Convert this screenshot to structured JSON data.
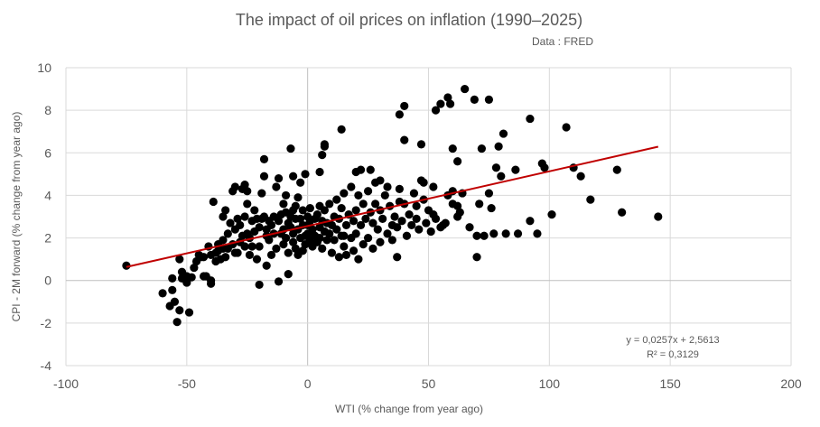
{
  "chart_data": {
    "type": "scatter",
    "title": "The impact of oil prices on inflation (1990–2025)",
    "subtitle": "Data : FRED",
    "xlabel": "WTI (% change from year ago)",
    "ylabel": "CPI - 2M forward (% change from year ago)",
    "xlim": [
      -100,
      200
    ],
    "ylim": [
      -4,
      10
    ],
    "xticks": [
      -100,
      -50,
      0,
      50,
      100,
      150,
      200
    ],
    "yticks": [
      -4,
      -2,
      0,
      2,
      4,
      6,
      8,
      10
    ],
    "grid": true,
    "legend": "none",
    "marker_color": "#000000",
    "trendline": {
      "slope": 0.0257,
      "intercept": 2.5613,
      "x_range": [
        -75,
        145
      ],
      "color": "#c00000",
      "equation_label": "y = 0,0257x + 2,5613",
      "r2_label": "R² = 0,3129"
    },
    "points": [
      [
        -75,
        0.7
      ],
      [
        -60,
        -0.6
      ],
      [
        -57,
        -1.2
      ],
      [
        -56,
        -0.45
      ],
      [
        -56,
        0.1
      ],
      [
        -55,
        -1.0
      ],
      [
        -54,
        -1.95
      ],
      [
        -53,
        1.0
      ],
      [
        -53,
        -1.4
      ],
      [
        -52,
        0.4
      ],
      [
        -52,
        0.1
      ],
      [
        -50,
        0.2
      ],
      [
        -50,
        -0.1
      ],
      [
        -49,
        -1.5
      ],
      [
        -48,
        0.15
      ],
      [
        -47,
        0.6
      ],
      [
        -46,
        0.9
      ],
      [
        -45,
        1.2
      ],
      [
        -44,
        1.1
      ],
      [
        -43,
        0.2
      ],
      [
        -42,
        0.2
      ],
      [
        -40,
        0
      ],
      [
        -40,
        -0.15
      ],
      [
        -40,
        1.2
      ],
      [
        -39,
        3.7
      ],
      [
        -38,
        0.9
      ],
      [
        -37,
        1.7
      ],
      [
        -36,
        1.0
      ],
      [
        -35,
        3.0
      ],
      [
        -35,
        1.9
      ],
      [
        -34,
        3.3
      ],
      [
        -33,
        1.5
      ],
      [
        -32,
        2.7
      ],
      [
        -31,
        4.2
      ],
      [
        -30,
        4.4
      ],
      [
        -30,
        1.3
      ],
      [
        -29,
        2.9
      ],
      [
        -28,
        1.8
      ],
      [
        -27,
        4.3
      ],
      [
        -26,
        4.5
      ],
      [
        -25,
        4.2
      ],
      [
        -25,
        3.6
      ],
      [
        -25,
        2.2
      ],
      [
        -24,
        1.2
      ],
      [
        -23,
        2.8
      ],
      [
        -22,
        3.3
      ],
      [
        -21,
        1.0
      ],
      [
        -20,
        1.6
      ],
      [
        -20,
        -0.2
      ],
      [
        -19,
        4.1
      ],
      [
        -18,
        5.7
      ],
      [
        -18,
        4.9
      ],
      [
        -17,
        2.1
      ],
      [
        -17,
        0.7
      ],
      [
        -16,
        2.8
      ],
      [
        -15,
        1.2
      ],
      [
        -14,
        3.0
      ],
      [
        -13,
        4.4
      ],
      [
        -12,
        4.8
      ],
      [
        -12,
        -0.05
      ],
      [
        -11,
        2.2
      ],
      [
        -10,
        3.6
      ],
      [
        -10,
        1.7
      ],
      [
        -9,
        4.0
      ],
      [
        -8,
        0.3
      ],
      [
        -7,
        6.2
      ],
      [
        -7,
        2.5
      ],
      [
        -6,
        4.9
      ],
      [
        -6,
        3.3
      ],
      [
        -5,
        1.5
      ],
      [
        -4,
        3.9
      ],
      [
        -3,
        2.0
      ],
      [
        -3,
        4.6
      ],
      [
        -2,
        1.4
      ],
      [
        -1,
        5.0
      ],
      [
        0,
        2.6
      ],
      [
        -20,
        2.5
      ],
      [
        -19,
        2.9
      ],
      [
        -18,
        3.0
      ],
      [
        -17,
        2.4
      ],
      [
        -16,
        1.9
      ],
      [
        -15,
        2.6
      ],
      [
        -14,
        2.2
      ],
      [
        -13,
        1.5
      ],
      [
        -12,
        2.8
      ],
      [
        -11,
        3.1
      ],
      [
        -10,
        2.4
      ],
      [
        -9,
        2.0
      ],
      [
        -9,
        3.2
      ],
      [
        -8,
        2.7
      ],
      [
        -8,
        1.3
      ],
      [
        -7,
        3.0
      ],
      [
        -6,
        2.2
      ],
      [
        -6,
        1.8
      ],
      [
        -5,
        2.9
      ],
      [
        -5,
        3.5
      ],
      [
        -4,
        2.4
      ],
      [
        -4,
        1.2
      ],
      [
        -3,
        2.9
      ],
      [
        -2,
        2.6
      ],
      [
        -2,
        3.3
      ],
      [
        -1,
        2.1
      ],
      [
        -1,
        1.7
      ],
      [
        0,
        3.0
      ],
      [
        0,
        2.2
      ],
      [
        1,
        1.9
      ],
      [
        1,
        2.8
      ],
      [
        1,
        3.4
      ],
      [
        2,
        2.4
      ],
      [
        2,
        1.6
      ],
      [
        3,
        2.9
      ],
      [
        3,
        2.1
      ],
      [
        4,
        3.1
      ],
      [
        4,
        1.8
      ],
      [
        5,
        2.5
      ],
      [
        5,
        2.0
      ],
      [
        6,
        2.8
      ],
      [
        6,
        1.5
      ],
      [
        7,
        3.3
      ],
      [
        7,
        2.3
      ],
      [
        8,
        1.9
      ],
      [
        8,
        2.7
      ],
      [
        9,
        3.6
      ],
      [
        9,
        2.2
      ],
      [
        10,
        1.3
      ],
      [
        10,
        2.6
      ],
      [
        11,
        3.0
      ],
      [
        11,
        1.9
      ],
      [
        12,
        2.4
      ],
      [
        12,
        3.8
      ],
      [
        13,
        1.1
      ],
      [
        13,
        2.9
      ],
      [
        14,
        2.1
      ],
      [
        14,
        3.4
      ],
      [
        15,
        1.6
      ],
      [
        15,
        4.1
      ],
      [
        16,
        2.6
      ],
      [
        16,
        1.2
      ],
      [
        17,
        3.1
      ],
      [
        18,
        2.0
      ],
      [
        18,
        4.4
      ],
      [
        19,
        2.8
      ],
      [
        19,
        1.4
      ],
      [
        20,
        3.3
      ],
      [
        20,
        2.2
      ],
      [
        21,
        1.0
      ],
      [
        21,
        4.0
      ],
      [
        22,
        2.6
      ],
      [
        23,
        3.6
      ],
      [
        23,
        1.7
      ],
      [
        24,
        2.9
      ],
      [
        25,
        4.2
      ],
      [
        25,
        2.0
      ],
      [
        26,
        3.2
      ],
      [
        27,
        1.5
      ],
      [
        27,
        2.7
      ],
      [
        28,
        4.6
      ],
      [
        29,
        2.4
      ],
      [
        30,
        3.3
      ],
      [
        30,
        1.8
      ],
      [
        31,
        2.9
      ],
      [
        32,
        4.0
      ],
      [
        33,
        2.2
      ],
      [
        34,
        3.5
      ],
      [
        35,
        1.9
      ],
      [
        36,
        3.0
      ],
      [
        37,
        2.5
      ],
      [
        38,
        4.3
      ],
      [
        39,
        2.8
      ],
      [
        40,
        3.6
      ],
      [
        41,
        2.1
      ],
      [
        42,
        3.1
      ],
      [
        43,
        2.6
      ],
      [
        44,
        4.1
      ],
      [
        45,
        2.9
      ],
      [
        45,
        3.5
      ],
      [
        46,
        2.4
      ],
      [
        47,
        4.7
      ],
      [
        48,
        3.8
      ],
      [
        49,
        2.7
      ],
      [
        50,
        3.3
      ],
      [
        51,
        2.3
      ],
      [
        52,
        4.4
      ],
      [
        53,
        2.9
      ],
      [
        -30,
        2.4
      ],
      [
        -28,
        2.6
      ],
      [
        -27,
        2.1
      ],
      [
        -26,
        3.0
      ],
      [
        -24,
        2.0
      ],
      [
        -23,
        1.6
      ],
      [
        -22,
        2.3
      ],
      [
        -21,
        2.9
      ],
      [
        -33,
        2.2
      ],
      [
        -35,
        1.5
      ],
      [
        -34,
        1.1
      ],
      [
        -31,
        1.7
      ],
      [
        -29,
        1.3
      ],
      [
        -26,
        1.6
      ],
      [
        -37,
        1.4
      ],
      [
        -38,
        1.3
      ],
      [
        -41,
        1.6
      ],
      [
        -43,
        1.1
      ],
      [
        5,
        5.1
      ],
      [
        5,
        3.5
      ],
      [
        6,
        5.9
      ],
      [
        7,
        6.3
      ],
      [
        7,
        6.4
      ],
      [
        14,
        7.1
      ],
      [
        15,
        2.1
      ],
      [
        20,
        5.1
      ],
      [
        22,
        5.2
      ],
      [
        26,
        5.2
      ],
      [
        28,
        3.6
      ],
      [
        30,
        4.7
      ],
      [
        33,
        4.4
      ],
      [
        35,
        2.6
      ],
      [
        37,
        1.1
      ],
      [
        38,
        3.7
      ],
      [
        38,
        7.8
      ],
      [
        40,
        8.2
      ],
      [
        40,
        6.6
      ],
      [
        47,
        6.4
      ],
      [
        48,
        4.6
      ],
      [
        53,
        8.0
      ],
      [
        55,
        8.3
      ],
      [
        58,
        8.6
      ],
      [
        59,
        8.3
      ],
      [
        60,
        6.2
      ],
      [
        60,
        4.2
      ],
      [
        62,
        5.6
      ],
      [
        64,
        4.1
      ],
      [
        65,
        9.0
      ],
      [
        67,
        2.5
      ],
      [
        69,
        8.5
      ],
      [
        70,
        1.1
      ],
      [
        70,
        2.1
      ],
      [
        71,
        3.6
      ],
      [
        72,
        6.2
      ],
      [
        73,
        2.1
      ],
      [
        75,
        4.1
      ],
      [
        75,
        8.5
      ],
      [
        76,
        3.4
      ],
      [
        77,
        2.2
      ],
      [
        78,
        5.3
      ],
      [
        79,
        6.3
      ],
      [
        80,
        4.9
      ],
      [
        81,
        6.9
      ],
      [
        82,
        2.2
      ],
      [
        86,
        5.2
      ],
      [
        87,
        2.2
      ],
      [
        92,
        7.6
      ],
      [
        92,
        2.8
      ],
      [
        95,
        2.2
      ],
      [
        97,
        5.5
      ],
      [
        98,
        5.3
      ],
      [
        101,
        3.1
      ],
      [
        107,
        7.2
      ],
      [
        110,
        5.3
      ],
      [
        113,
        4.9
      ],
      [
        117,
        3.8
      ],
      [
        128,
        5.2
      ],
      [
        130,
        3.2
      ],
      [
        145,
        3.0
      ],
      [
        62,
        3.5
      ],
      [
        63,
        3.2
      ],
      [
        55,
        2.5
      ],
      [
        52,
        3.1
      ],
      [
        56,
        2.6
      ],
      [
        57,
        2.7
      ],
      [
        60,
        3.6
      ],
      [
        58,
        4.0
      ],
      [
        62,
        3.0
      ]
    ]
  }
}
